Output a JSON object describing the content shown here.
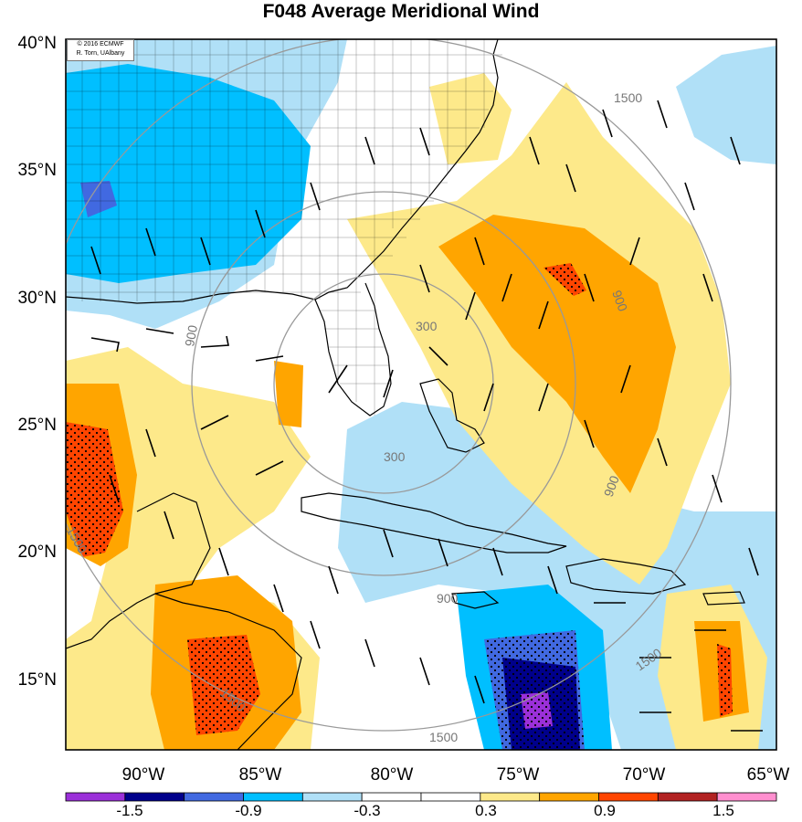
{
  "title": "F048 Average Meridional Wind",
  "credit": {
    "line1": "© 2016 ECMWF",
    "line2": "R. Torn, UAlbany"
  },
  "lat_labels": [
    "40°N",
    "35°N",
    "30°N",
    "25°N",
    "20°N",
    "15°N"
  ],
  "lon_labels": [
    "90°W",
    "85°W",
    "80°W",
    "75°W",
    "70°W",
    "65°W"
  ],
  "colorbar": {
    "tick_labels": [
      "-1.5",
      "-0.9",
      "-0.3",
      "0.3",
      "0.9",
      "1.5"
    ],
    "colors": [
      "#9b30d9",
      "#00008b",
      "#4169e1",
      "#00bfff",
      "#b0e0f7",
      "#ffffff",
      "#ffffff",
      "#fde98a",
      "#ffa500",
      "#ff4500",
      "#b22222",
      "#ff8fcf"
    ]
  },
  "range_ring_labels": [
    "300",
    "300",
    "900",
    "900",
    "900",
    "900",
    "1500",
    "1500",
    "1500",
    "1500",
    "1500"
  ],
  "colors": {
    "coast": "#000000",
    "ring": "#999999",
    "barb": "#000000"
  }
}
